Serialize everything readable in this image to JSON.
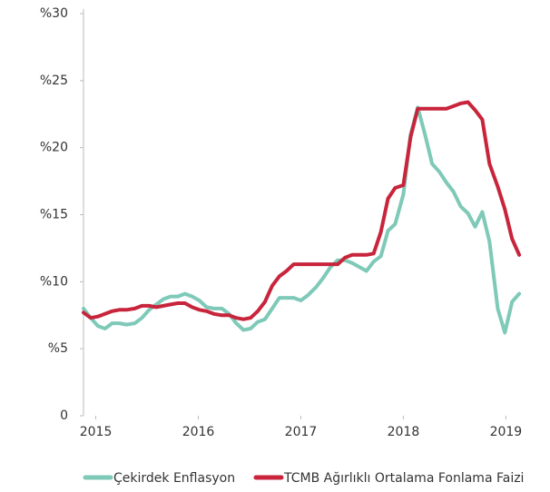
{
  "chart_data": {
    "type": "line",
    "x": [
      2014.88,
      2014.95,
      2015.02,
      2015.09,
      2015.16,
      2015.23,
      2015.3,
      2015.38,
      2015.45,
      2015.52,
      2015.59,
      2015.66,
      2015.73,
      2015.8,
      2015.87,
      2015.94,
      2016.01,
      2016.08,
      2016.15,
      2016.23,
      2016.3,
      2016.37,
      2016.44,
      2016.51,
      2016.58,
      2016.65,
      2016.72,
      2016.79,
      2016.86,
      2016.93,
      2017.0,
      2017.07,
      2017.15,
      2017.22,
      2017.29,
      2017.36,
      2017.43,
      2017.5,
      2017.57,
      2017.64,
      2017.71,
      2017.78,
      2017.85,
      2017.92,
      2018.0,
      2018.07,
      2018.14,
      2018.21,
      2018.28,
      2018.35,
      2018.42,
      2018.49,
      2018.56,
      2018.63,
      2018.7,
      2018.77,
      2018.84,
      2018.92,
      2018.99,
      2019.06,
      2019.13
    ],
    "series": [
      {
        "name": "Çekirdek Enflasyon",
        "color": "#7ec9b8",
        "values": [
          8.0,
          7.3,
          6.7,
          6.5,
          6.9,
          6.9,
          6.8,
          6.9,
          7.3,
          7.9,
          8.3,
          8.7,
          8.9,
          8.9,
          9.1,
          8.9,
          8.6,
          8.1,
          8.0,
          8.0,
          7.6,
          6.9,
          6.4,
          6.5,
          7.0,
          7.2,
          8.0,
          8.8,
          8.8,
          8.8,
          8.6,
          9.0,
          9.6,
          10.3,
          11.1,
          11.6,
          11.6,
          11.4,
          11.1,
          10.8,
          11.5,
          11.9,
          13.8,
          14.3,
          16.5,
          21.0,
          23.0,
          21.0,
          18.8,
          18.2,
          17.4,
          16.7,
          15.6,
          15.1,
          14.1,
          15.2,
          13.0,
          8.0,
          6.2,
          8.5,
          9.1
        ]
      },
      {
        "name": "TCMB Ağırlıklı Ortalama Fonlama Faizi",
        "color": "#c8243c",
        "values": [
          7.7,
          7.3,
          7.4,
          7.6,
          7.8,
          7.9,
          7.9,
          8.0,
          8.2,
          8.2,
          8.1,
          8.2,
          8.3,
          8.4,
          8.4,
          8.1,
          7.9,
          7.8,
          7.6,
          7.5,
          7.5,
          7.3,
          7.2,
          7.3,
          7.8,
          8.5,
          9.7,
          10.4,
          10.8,
          11.3,
          11.3,
          11.3,
          11.3,
          11.3,
          11.3,
          11.3,
          11.8,
          12.0,
          12.0,
          12.0,
          12.1,
          13.7,
          16.2,
          17.0,
          17.2,
          20.8,
          22.9,
          22.9,
          22.9,
          22.9,
          22.9,
          23.1,
          23.3,
          23.4,
          22.8,
          22.1,
          18.8,
          17.1,
          15.4,
          13.2,
          12.0
        ]
      }
    ],
    "xlim": [
      2014.88,
      2019.2
    ],
    "xticks": [
      2015,
      2016,
      2017,
      2018,
      2019
    ],
    "ylim": [
      0,
      30
    ],
    "yticks": [
      0,
      {
        "value": 5,
        "label": "%5"
      },
      {
        "value": 10,
        "label": "%10"
      },
      {
        "value": 15,
        "label": "%15"
      },
      {
        "value": 20,
        "label": "%20"
      },
      {
        "value": 25,
        "label": "%25"
      },
      {
        "value": 30,
        "label": "%30"
      }
    ],
    "grid": false
  }
}
